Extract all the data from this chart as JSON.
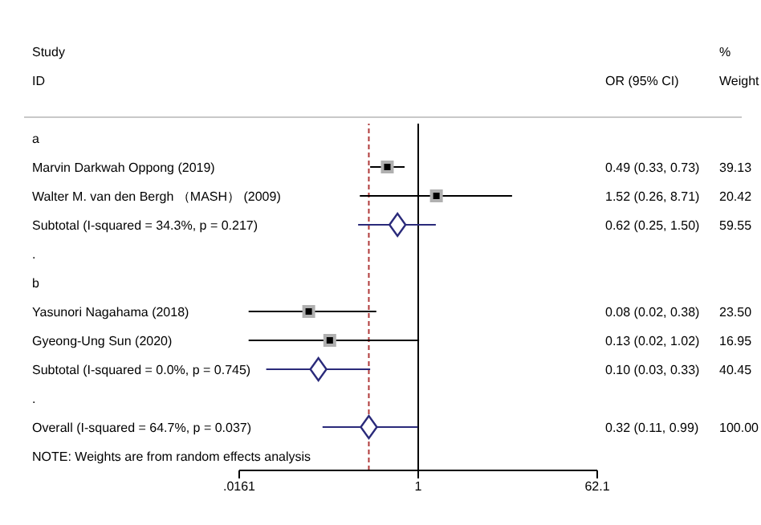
{
  "chart_data": {
    "type": "scatter",
    "orientation": "horizontal",
    "log": "x",
    "categories": [
      "a",
      "Marvin Darkwah Oppong (2019)",
      "Walter M. van den Bergh （MASH） (2009)",
      "Subtotal  (I-squared = 34.3%, p = 0.217)",
      ".",
      "b",
      "Yasunori Nagahama (2018)",
      "Gyeong-Ung Sun (2020)",
      "Subtotal  (I-squared = 0.0%, p = 0.745)",
      ".",
      "Overall  (I-squared = 64.7%, p = 0.037)",
      null
    ],
    "series": [
      {
        "color": "#000000",
        "marker": "square",
        "values": [
          null,
          0.49,
          1.52,
          null,
          null,
          null,
          0.08,
          0.13,
          null,
          null,
          null,
          null
        ],
        "errors": [
          null,
          [
            0.33,
            0.73
          ],
          [
            0.26,
            8.71
          ],
          null,
          null,
          null,
          [
            0.02,
            0.38
          ],
          [
            0.02,
            1.02
          ],
          null,
          null,
          null,
          null
        ],
        "value_labels": [
          null,
          "0.49 (0.33, 0.73)",
          "1.52 (0.26, 8.71)",
          null,
          null,
          null,
          "0.08 (0.02, 0.38)",
          "0.13 (0.02, 1.02)",
          null,
          null,
          null,
          null
        ]
      },
      {
        "color": "#2a2a7a",
        "marker": "diamond",
        "values": [
          null,
          null,
          null,
          0.62,
          null,
          null,
          null,
          null,
          0.1,
          null,
          0.32,
          null
        ],
        "errors": [
          null,
          null,
          null,
          [
            0.25,
            1.5
          ],
          null,
          null,
          null,
          null,
          [
            0.03,
            0.33
          ],
          null,
          [
            0.11,
            0.99
          ],
          null
        ]
      }
    ],
    "xlim": [
      0.0161,
      62.1
    ],
    "xticks": [
      {
        "value": 0.0161,
        "label": ".0161"
      },
      1,
      62.1
    ],
    "ref_lines": [
      {
        "axis": "x",
        "value": 1,
        "color": "#000000",
        "line_style": "solid"
      },
      {
        "axis": "x",
        "value": 0.32,
        "color": "#b03a3a",
        "line_style": "dashed"
      }
    ],
    "annotations": [
      "Study",
      "ID",
      "OR (95% CI)",
      "%",
      "Weight",
      "NOTE: Weights are from random effects analysis",
      "39.13",
      "20.42",
      "59.55",
      "23.50",
      "16.95",
      "40.45",
      "100.00",
      "0.62 (0.25, 1.50)",
      "0.10 (0.03, 0.33)",
      "0.32 (0.11, 0.99)"
    ]
  }
}
